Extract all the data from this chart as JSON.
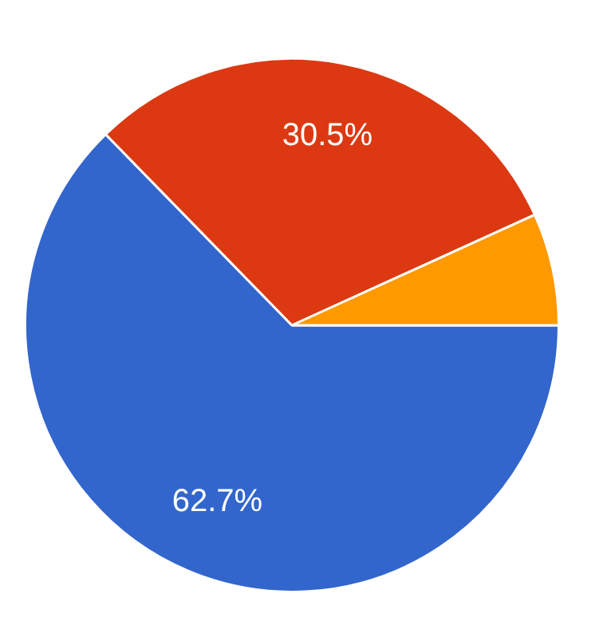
{
  "chart_data": {
    "type": "pie",
    "categories": [
      null,
      null,
      null
    ],
    "values": [
      62.7,
      30.5,
      6.8
    ],
    "colors": [
      "#3366cc",
      "#dc3912",
      "#ff9900"
    ],
    "value_labels": [
      "62.7%",
      "30.5%",
      null
    ],
    "legend": false
  }
}
